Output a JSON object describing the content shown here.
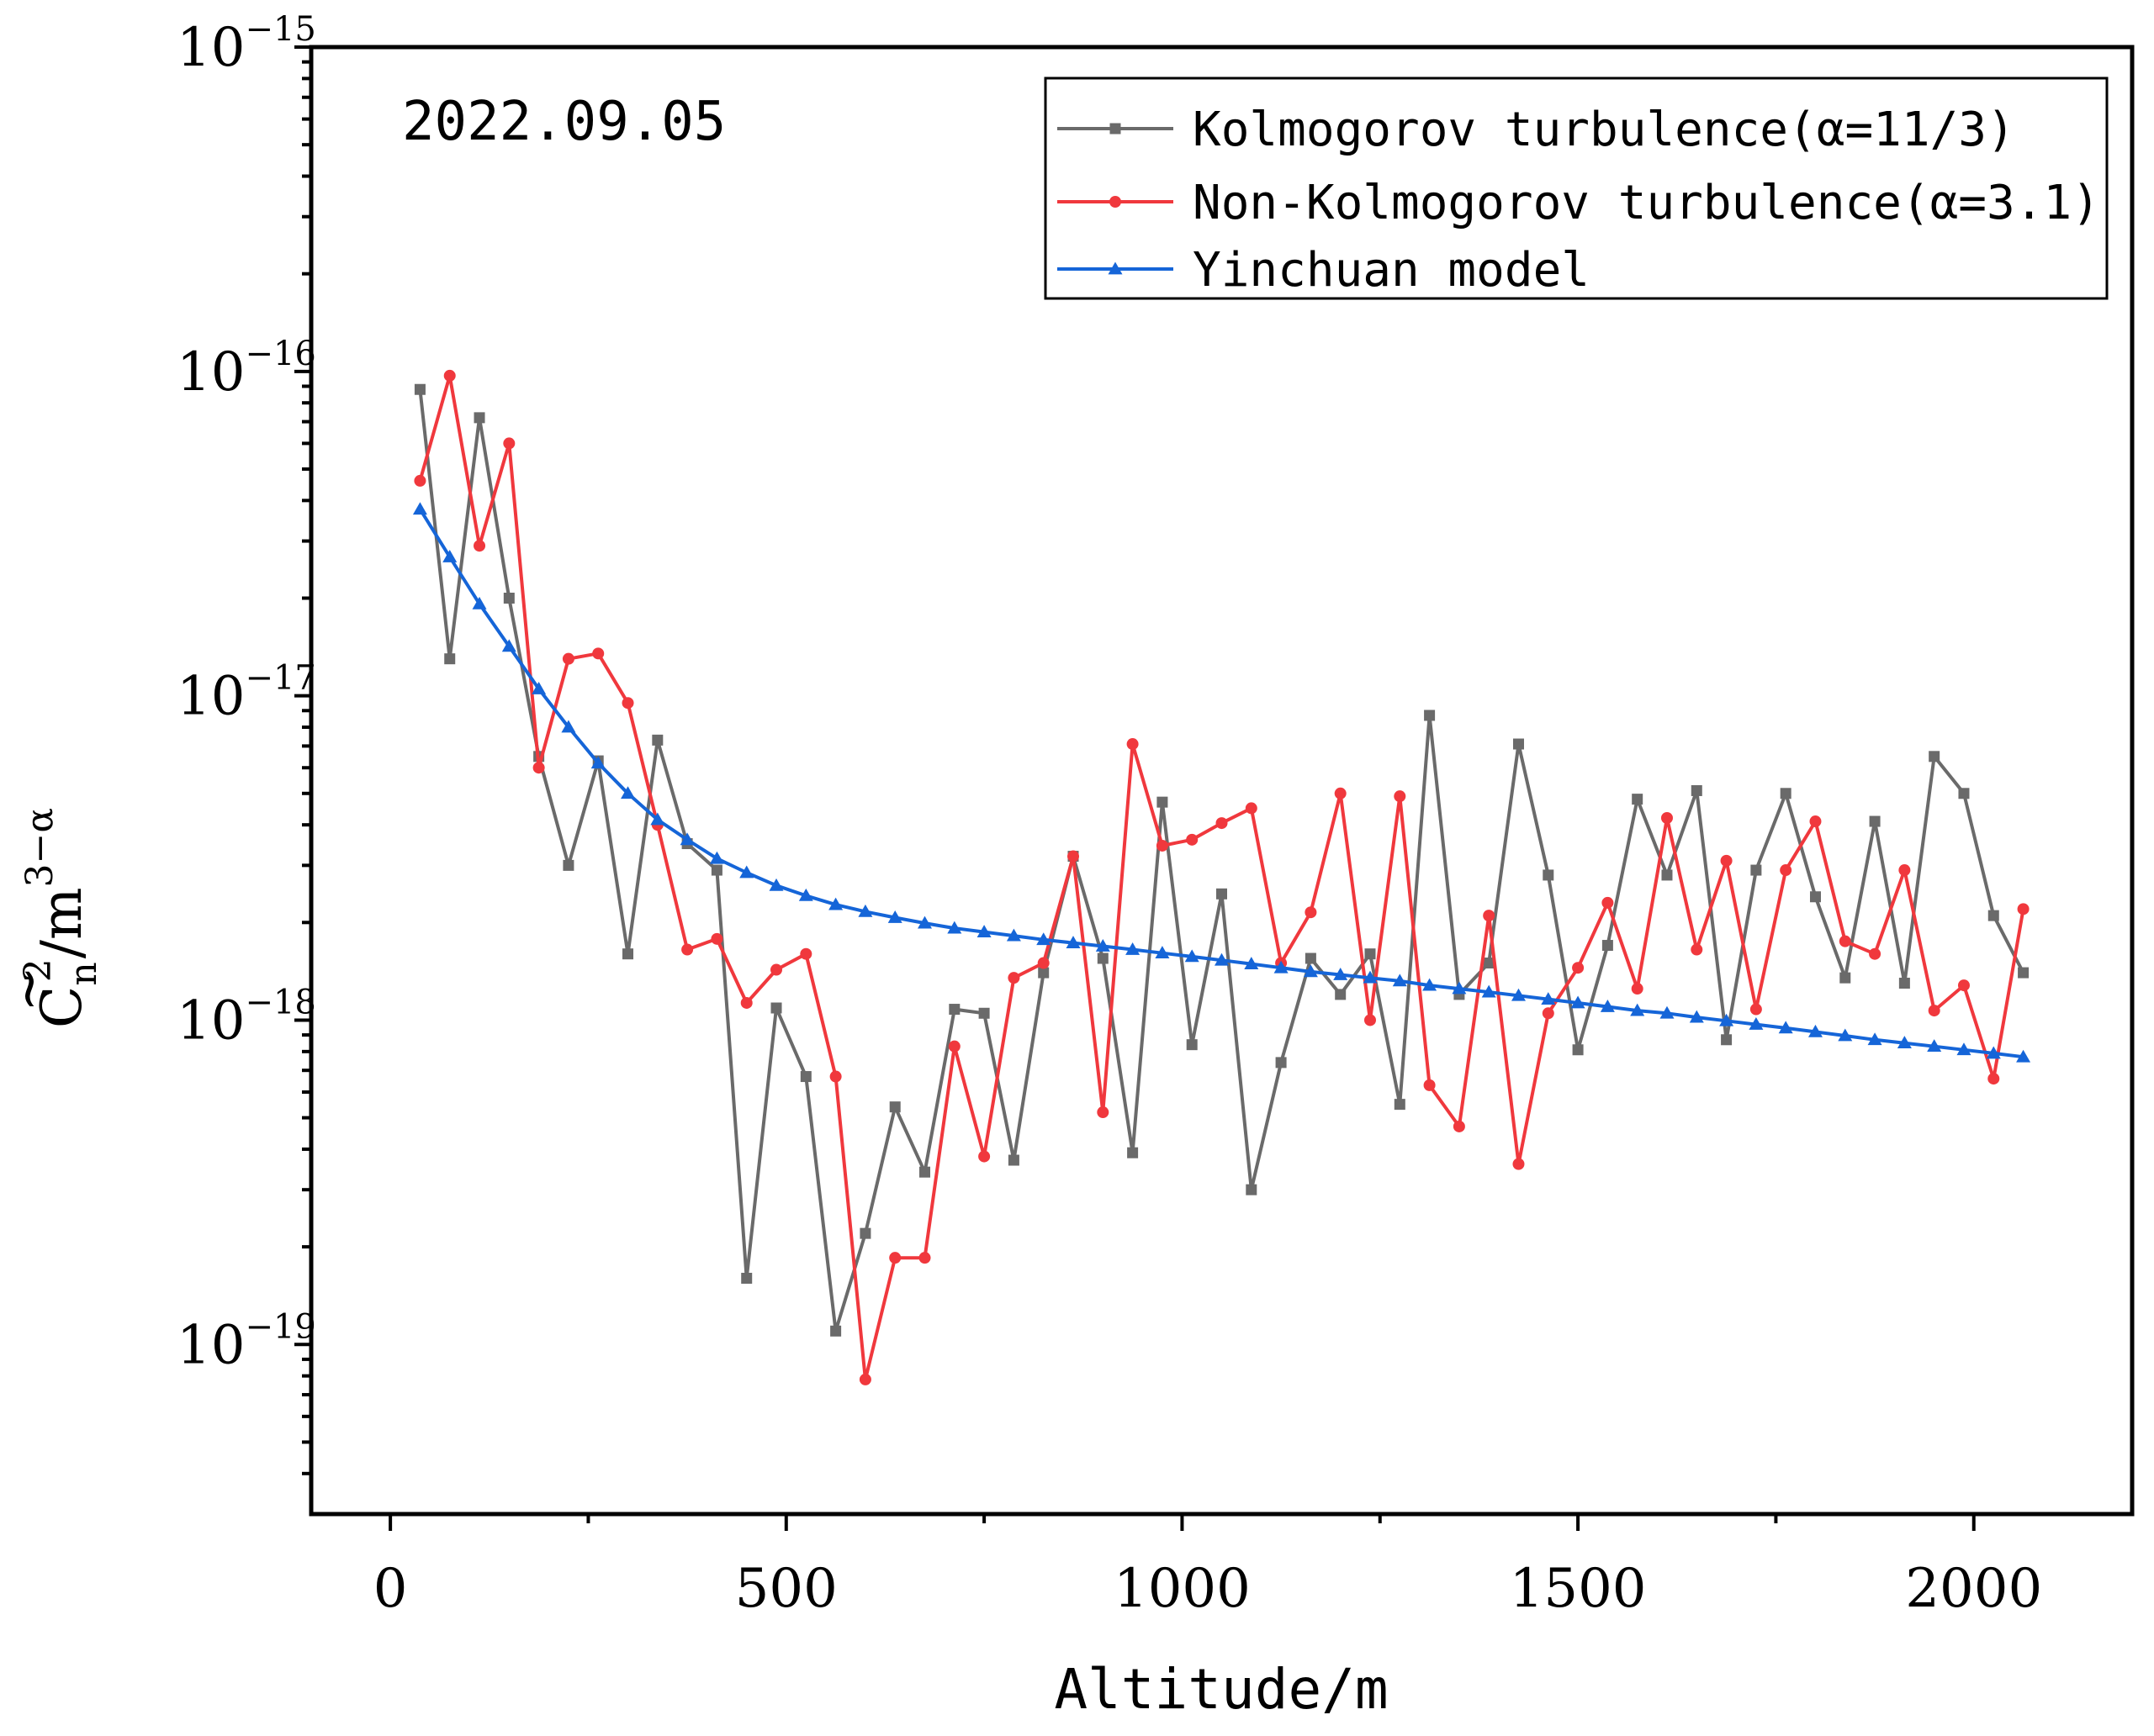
{
  "chart_data": {
    "type": "line",
    "title": "",
    "annotation": "2022.09.05",
    "xlabel": "Altitude/m",
    "ylabel": {
      "main": "C",
      "tilde": "~",
      "sub": "n",
      "sup2": "2",
      "unit": "/m",
      "unit_sup": "3−α"
    },
    "xlim": [
      -100,
      2200
    ],
    "ylim": [
      3e-20,
      1e-15
    ],
    "yscale": "log",
    "xticks": [
      0,
      500,
      1000,
      1500,
      2000
    ],
    "xtick_labels": [
      "0",
      "500",
      "1000",
      "1500",
      "2000"
    ],
    "yticks": [
      {
        "value": 1e-15,
        "base": "10",
        "exp": "−15"
      },
      {
        "value": 1e-16,
        "base": "10",
        "exp": "−16"
      },
      {
        "value": 1e-17,
        "base": "10",
        "exp": "−17"
      },
      {
        "value": 1e-18,
        "base": "10",
        "exp": "−18"
      },
      {
        "value": 1e-19,
        "base": "10",
        "exp": "−19"
      }
    ],
    "legend_position": "top-right",
    "x": [
      37.5,
      75,
      112.5,
      150,
      187.5,
      225,
      262.5,
      300,
      337.5,
      375,
      412.5,
      450,
      487.5,
      525,
      562.5,
      600,
      637.5,
      675,
      712.5,
      750,
      787.5,
      825,
      862.5,
      900,
      937.5,
      975,
      1012.5,
      1050,
      1087.5,
      1125,
      1162.5,
      1200,
      1237.5,
      1275,
      1312.5,
      1350,
      1387.5,
      1425,
      1462.5,
      1500,
      1537.5,
      1575,
      1612.5,
      1650,
      1687.5,
      1725,
      1762.5,
      1800,
      1837.5,
      1875,
      1912.5,
      1950,
      1987.5,
      2025,
      2062.5
    ],
    "series": [
      {
        "name": "Kolmogorov turbulence(α=11/3)",
        "color": "#6a6a6a",
        "marker": "square",
        "values": [
          8.8e-17,
          1.3e-17,
          7.2e-17,
          2e-17,
          6.5e-18,
          3e-18,
          6.3e-18,
          1.6e-18,
          7.3e-18,
          3.5e-18,
          2.9e-18,
          1.6e-19,
          1.09e-18,
          6.7e-19,
          1.1e-19,
          2.2e-19,
          5.4e-19,
          3.4e-19,
          1.08e-18,
          1.05e-18,
          3.7e-19,
          1.4e-18,
          3.2e-18,
          1.55e-18,
          3.9e-19,
          4.7e-18,
          8.4e-19,
          2.45e-18,
          3e-19,
          7.4e-19,
          1.55e-18,
          1.2e-18,
          1.6e-18,
          5.5e-19,
          8.7e-18,
          1.2e-18,
          1.5e-18,
          7.1e-18,
          2.8e-18,
          8.1e-19,
          1.7e-18,
          4.8e-18,
          2.8e-18,
          5.1e-18,
          8.7e-19,
          2.9e-18,
          5e-18,
          2.4e-18,
          1.35e-18,
          4.1e-18,
          1.3e-18,
          6.5e-18,
          5e-18,
          2.1e-18,
          1.4e-18
        ]
      },
      {
        "name": "Non-Kolmogorov turbulence(α=3.1)",
        "color": "#f0383d",
        "marker": "circle",
        "values": [
          4.6e-17,
          9.7e-17,
          2.9e-17,
          6e-17,
          6e-18,
          1.3e-17,
          1.35e-17,
          9.5e-18,
          4e-18,
          1.65e-18,
          1.78e-18,
          1.13e-18,
          1.43e-18,
          1.6e-18,
          6.7e-19,
          7.8e-20,
          1.85e-19,
          1.85e-19,
          8.3e-19,
          3.8e-19,
          1.35e-18,
          1.5e-18,
          3.2e-18,
          5.2e-19,
          7.1e-18,
          3.45e-18,
          3.6e-18,
          4.05e-18,
          4.5e-18,
          1.5e-18,
          2.15e-18,
          5e-18,
          1e-18,
          4.9e-18,
          6.3e-19,
          4.7e-19,
          2.1e-18,
          3.6e-19,
          1.05e-18,
          1.45e-18,
          2.3e-18,
          1.25e-18,
          4.2e-18,
          1.65e-18,
          3.1e-18,
          1.08e-18,
          2.9e-18,
          4.1e-18,
          1.75e-18,
          1.6e-18,
          2.9e-18,
          1.07e-18,
          1.28e-18,
          6.6e-19,
          2.2e-18
        ]
      },
      {
        "name": "Yinchuan model",
        "color": "#1565d8",
        "marker": "triangle",
        "values": [
          3.76e-17,
          2.68e-17,
          1.92e-17,
          1.42e-17,
          1.05e-17,
          8e-18,
          6.2e-18,
          5e-18,
          4.15e-18,
          3.6e-18,
          3.15e-18,
          2.85e-18,
          2.6e-18,
          2.42e-18,
          2.27e-18,
          2.16e-18,
          2.07e-18,
          1.99e-18,
          1.92e-18,
          1.87e-18,
          1.82e-18,
          1.77e-18,
          1.73e-18,
          1.69e-18,
          1.65e-18,
          1.61e-18,
          1.57e-18,
          1.53e-18,
          1.49e-18,
          1.45e-18,
          1.41e-18,
          1.38e-18,
          1.35e-18,
          1.32e-18,
          1.28e-18,
          1.25e-18,
          1.22e-18,
          1.19e-18,
          1.16e-18,
          1.13e-18,
          1.1e-18,
          1.07e-18,
          1.05e-18,
          1.02e-18,
          9.95e-19,
          9.7e-19,
          9.45e-19,
          9.2e-19,
          8.95e-19,
          8.7e-19,
          8.5e-19,
          8.3e-19,
          8.1e-19,
          7.9e-19,
          7.7e-19
        ]
      }
    ]
  }
}
